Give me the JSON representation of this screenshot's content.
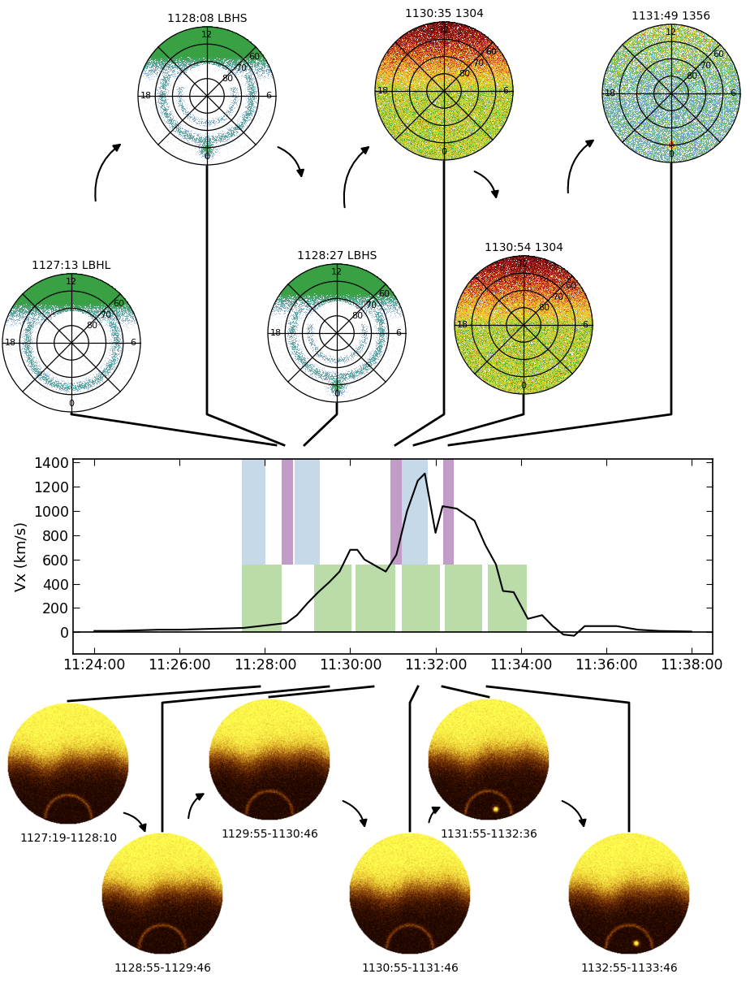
{
  "chart_data": {
    "type": "line",
    "y_label": "Vx (km/s)",
    "x": [
      "11:24:00",
      "11:24:30",
      "11:25:00",
      "11:25:30",
      "11:26:00",
      "11:26:30",
      "11:27:00",
      "11:27:30",
      "11:28:00",
      "11:28:30",
      "11:28:45",
      "11:29:00",
      "11:29:15",
      "11:29:30",
      "11:29:45",
      "11:30:00",
      "11:30:10",
      "11:30:20",
      "11:30:50",
      "11:31:05",
      "11:31:20",
      "11:31:35",
      "11:31:45",
      "11:32:00",
      "11:32:10",
      "11:32:30",
      "11:32:55",
      "11:33:10",
      "11:33:25",
      "11:33:35",
      "11:33:50",
      "11:34:10",
      "11:34:30",
      "11:34:45",
      "11:35:00",
      "11:35:15",
      "11:35:30",
      "11:36:00",
      "11:36:15",
      "11:36:45",
      "11:37:15",
      "11:38:00"
    ],
    "values": [
      10,
      10,
      15,
      20,
      20,
      25,
      30,
      35,
      55,
      75,
      140,
      240,
      330,
      410,
      500,
      680,
      680,
      600,
      500,
      640,
      1000,
      1250,
      1310,
      820,
      1040,
      1020,
      920,
      720,
      560,
      340,
      330,
      110,
      140,
      50,
      -20,
      -30,
      50,
      50,
      50,
      20,
      10,
      5
    ],
    "color": "#000000",
    "xlim": [
      "11:23:30",
      "11:38:30"
    ],
    "xticks": [
      "11:24:00",
      "11:26:00",
      "11:28:00",
      "11:30:00",
      "11:32:00",
      "11:34:00",
      "11:36:00",
      "11:38:00"
    ],
    "ylim": [
      -180,
      1430
    ],
    "yticks": [
      0,
      200,
      400,
      600,
      800,
      1000,
      1200,
      1400
    ],
    "reference_lines": [
      0
    ],
    "shaded_intervals": [
      {
        "start": "11:27:28",
        "end": "11:28:23",
        "low": 0,
        "high": 560,
        "color": "#b9dca8"
      },
      {
        "start": "11:29:09",
        "end": "11:30:02",
        "low": 0,
        "high": 560,
        "color": "#b9dca8"
      },
      {
        "start": "11:30:08",
        "end": "11:31:03",
        "low": 0,
        "high": 560,
        "color": "#b9dca8"
      },
      {
        "start": "11:31:12",
        "end": "11:32:06",
        "low": 0,
        "high": 560,
        "color": "#b9dca8"
      },
      {
        "start": "11:32:13",
        "end": "11:33:06",
        "low": 0,
        "high": 560,
        "color": "#b9dca8"
      },
      {
        "start": "11:33:14",
        "end": "11:34:09",
        "low": 0,
        "high": 560,
        "color": "#b9dca8"
      },
      {
        "start": "11:27:28",
        "end": "11:28:01",
        "low": 560,
        "high": 1430,
        "color": "#c5d9e8"
      },
      {
        "start": "11:28:42",
        "end": "11:29:17",
        "low": 560,
        "high": 1430,
        "color": "#c5d9e8"
      },
      {
        "start": "11:31:12",
        "end": "11:31:49",
        "low": 560,
        "high": 1430,
        "color": "#c5d9e8"
      },
      {
        "start": "11:28:23",
        "end": "11:28:40",
        "low": 560,
        "high": 1430,
        "color": "#c09cc6"
      },
      {
        "start": "11:30:57",
        "end": "11:31:12",
        "low": 560,
        "high": 1430,
        "color": "#c09cc6"
      },
      {
        "start": "11:32:11",
        "end": "11:32:26",
        "low": 560,
        "high": 1430,
        "color": "#c09cc6"
      }
    ]
  },
  "polar_grid": {
    "latitudes": [
      60,
      70,
      80
    ],
    "mlt_labels": [
      12,
      6,
      0,
      18
    ]
  },
  "uv_images": [
    {
      "title": "1127:13 LBHL"
    },
    {
      "title": "1128:08 LBHS"
    },
    {
      "title": "1128:27 LBHS"
    },
    {
      "title": "1130:35 1304"
    },
    {
      "title": "1130:54 1304"
    },
    {
      "title": "1131:49 1356"
    }
  ],
  "camera_images": [
    {
      "label": "1127:19-1128:10"
    },
    {
      "label": "1128:55-1129:46"
    },
    {
      "label": "1129:55-1130:46"
    },
    {
      "label": "1130:55-1131:46"
    },
    {
      "label": "1131:55-1132:36"
    },
    {
      "label": "1132:55-1133:46"
    }
  ]
}
